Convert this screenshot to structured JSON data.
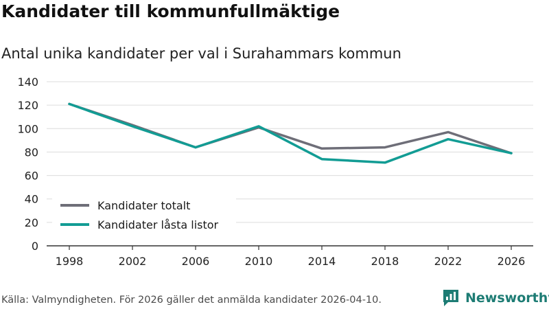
{
  "header": {
    "title": "Kandidater till kommunfullmäktige",
    "subtitle": "Antal unika kandidater per val i Surahammars kommun"
  },
  "footer": {
    "source": "Källa: Valmyndigheten. För 2026 gäller det anmälda kandidater 2026-04-10."
  },
  "brand": {
    "name": "Newsworthy",
    "icon": "newsworthy-logo-icon",
    "color": "#1d7c74"
  },
  "chart_data": {
    "type": "line",
    "title": "Kandidater till kommunfullmäktige",
    "subtitle": "Antal unika kandidater per val i Surahammars kommun",
    "xlabel": "",
    "ylabel": "",
    "x": [
      "1998",
      "2002",
      "2006",
      "2010",
      "2014",
      "2018",
      "2022",
      "2026"
    ],
    "ylim": [
      0,
      140
    ],
    "yticks": [
      0,
      20,
      40,
      60,
      80,
      100,
      120,
      140
    ],
    "grid": true,
    "legend_position": "bottom-left",
    "series": [
      {
        "name": "Kandidater totalt",
        "color": "#6e6e78",
        "values": [
          121,
          103,
          84,
          101,
          83,
          84,
          97,
          79
        ]
      },
      {
        "name": "Kandidater låsta listor",
        "color": "#129c94",
        "values": [
          121,
          102,
          84,
          102,
          74,
          71,
          91,
          79
        ]
      }
    ]
  }
}
